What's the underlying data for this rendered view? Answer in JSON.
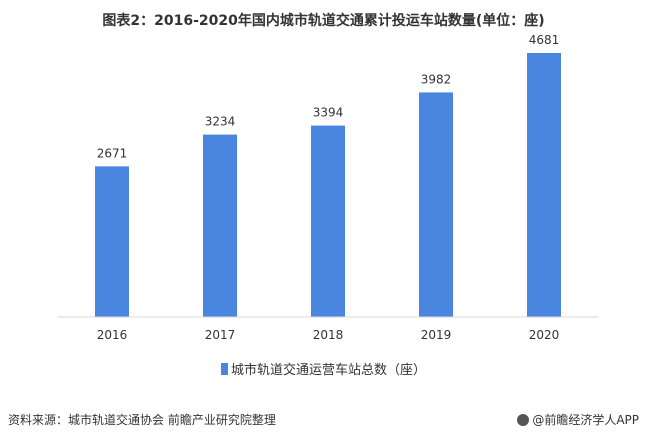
{
  "title": "图表2：2016-2020年国内城市轨道交通累计投运车站数量(单位：座)",
  "source_text": "资料来源：城市轨道交通协会 前瞻产业研究院整理",
  "brand_text": "@前瞻经济学人APP",
  "colors": {
    "bar": "#4a86e0",
    "axis": "#d9d9d9"
  },
  "chart_data": {
    "type": "bar",
    "categories": [
      "2016",
      "2017",
      "2018",
      "2019",
      "2020"
    ],
    "series": [
      {
        "name": "城市轨道交通运营车站总数（座）",
        "values": [
          2671,
          3234,
          3394,
          3982,
          4681
        ]
      }
    ],
    "value_labels": [
      "2671",
      "3234",
      "3394",
      "3982",
      "4681"
    ],
    "ylim": [
      0,
      5000
    ],
    "grid": false,
    "legend_position": "bottom"
  }
}
